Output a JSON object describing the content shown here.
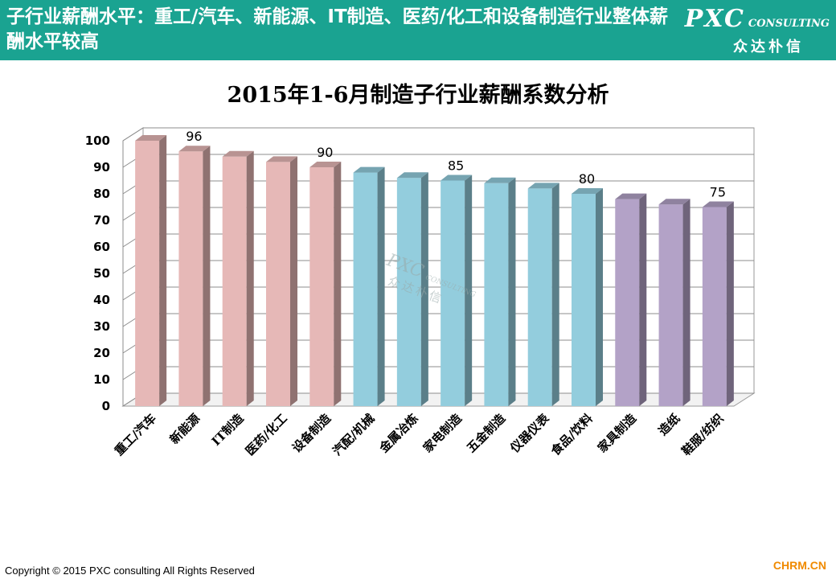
{
  "header": {
    "title": "子行业薪酬水平：重工/汽车、新能源、IT制造、医药/化工和设备制造行业整体薪酬水平较高",
    "logo_main": "PXC",
    "logo_consulting": "CONSULTING",
    "logo_cn": "众达朴信"
  },
  "watermark": {
    "main": "PXC",
    "consulting": "CONSULTING",
    "cn": "众达朴信"
  },
  "footer": {
    "copyright": "Copyright © 2015  PXC consulting All Rights Reserved",
    "site": "CHRM.CN"
  },
  "colors": {
    "header_bg": "#1aa391",
    "pink": "#e6b8b7",
    "blue": "#93cddd",
    "purple": "#b3a2c7"
  },
  "chart_data": {
    "type": "bar",
    "title": "2015年1-6月制造子行业薪酬系数分析",
    "xlabel": "",
    "ylabel": "",
    "ylim": [
      0,
      100
    ],
    "yticks": [
      0,
      10,
      20,
      30,
      40,
      50,
      60,
      70,
      80,
      90,
      100
    ],
    "grid": true,
    "legend": "none",
    "categories": [
      "重工/汽车",
      "新能源",
      "IT制造",
      "医药/化工",
      "设备制造",
      "汽配/机械",
      "金属冶炼",
      "家电制造",
      "五金制造",
      "仪器仪表",
      "食品/饮料",
      "家具制造",
      "造纸",
      "鞋服/纺织"
    ],
    "values": [
      100,
      96,
      94,
      92,
      90,
      88,
      86,
      85,
      84,
      82,
      80,
      78,
      76,
      75
    ],
    "color_groups": [
      "pink",
      "pink",
      "pink",
      "pink",
      "pink",
      "blue",
      "blue",
      "blue",
      "blue",
      "blue",
      "blue",
      "purple",
      "purple",
      "purple"
    ],
    "data_labels": [
      {
        "index": 1,
        "text": "96"
      },
      {
        "index": 4,
        "text": "90"
      },
      {
        "index": 7,
        "text": "85"
      },
      {
        "index": 10,
        "text": "80"
      },
      {
        "index": 13,
        "text": "75"
      }
    ]
  }
}
